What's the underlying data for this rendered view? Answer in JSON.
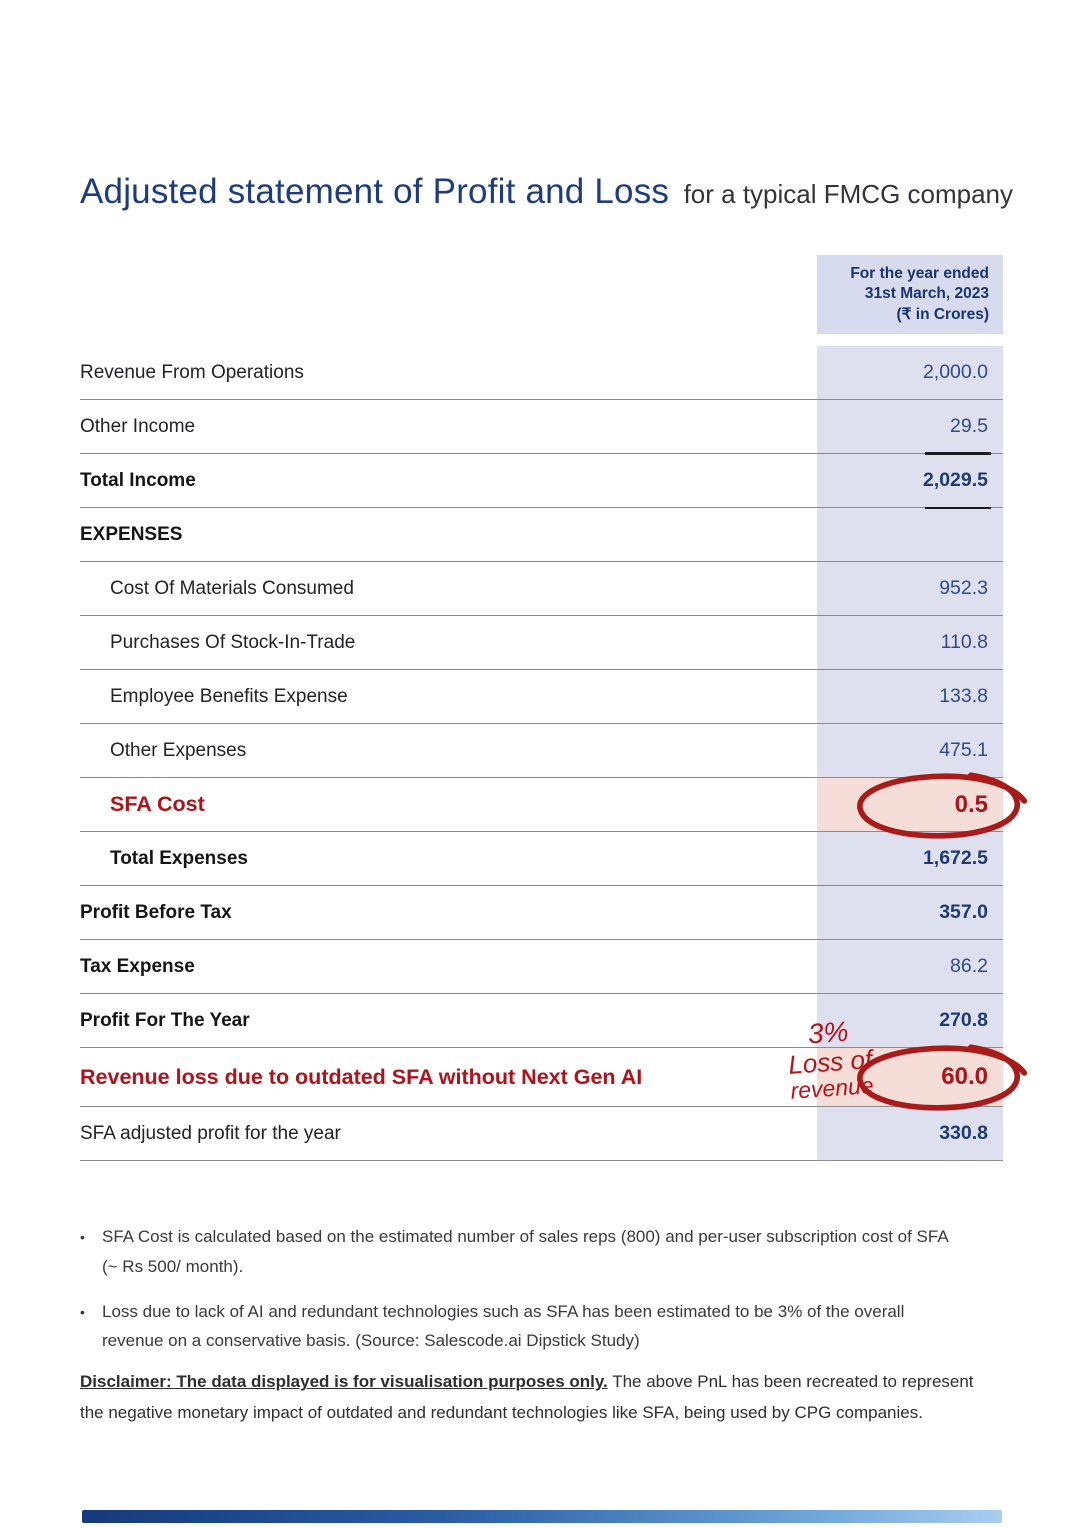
{
  "page": {
    "title": "Adjusted statement of Profit and Loss",
    "subtitle": "for a typical FMCG company"
  },
  "table": {
    "column_header_lines": [
      "For the year ended",
      "31st March, 2023",
      "(₹ in Crores)"
    ],
    "rows": [
      {
        "label": "Revenue From Operations",
        "value": "2,000.0"
      },
      {
        "label": "Other Income",
        "value": "29.5"
      },
      {
        "label": "Total Income",
        "value": "2,029.5",
        "label_bold": true,
        "value_bold": true,
        "ticks": true
      },
      {
        "label": "EXPENSES",
        "value": "",
        "label_bold": true
      },
      {
        "label": "Cost Of Materials Consumed",
        "value": "952.3",
        "indent": true
      },
      {
        "label": "Purchases Of Stock-In-Trade",
        "value": "110.8",
        "indent": true
      },
      {
        "label": "Employee Benefits Expense",
        "value": "133.8",
        "indent": true
      },
      {
        "label": "Other Expenses",
        "value": "475.1",
        "indent": true
      },
      {
        "label": "SFA Cost",
        "value": "0.5",
        "indent": true,
        "red": true,
        "pink": true,
        "circled": true
      },
      {
        "label": "Total Expenses",
        "value": "1,672.5",
        "indent": true,
        "label_bold": true,
        "value_bold": true
      },
      {
        "label": "Profit Before Tax",
        "value": "357.0",
        "label_bold": true,
        "value_bold": true
      },
      {
        "label": "Tax Expense",
        "value": "86.2",
        "label_bold": true
      },
      {
        "label": "Profit For The Year",
        "value": "270.8",
        "label_bold": true,
        "value_bold": true
      },
      {
        "label": "Revenue loss due to outdated SFA without Next Gen AI",
        "value": "60.0",
        "red": true,
        "pink": true,
        "circled": true,
        "tall": true
      },
      {
        "label": "SFA adjusted profit for the year",
        "value": "330.8",
        "value_bold": true
      }
    ]
  },
  "annotations": {
    "loss_note_lines": [
      "3%",
      "Loss of",
      "revenue"
    ],
    "circle_color": "#a81b18"
  },
  "footnotes_bullet": "•",
  "footnotes": [
    {
      "text": "SFA Cost is calculated based on the estimated number of sales reps (800) and per-user subscription cost of SFA (~ Rs 500/ month)."
    },
    {
      "text": "Loss due to lack of AI and redundant technologies such as SFA has been estimated to be 3% of the overall revenue on a conservative basis. (Source: Salescode.ai Dipstick Study)"
    }
  ],
  "disclaimer": {
    "lead": "Disclaimer: The data displayed is for visualisation purposes only.",
    "rest": " The above PnL has been recreated to represent the negative monetary impact of outdated and redundant technologies like SFA, being used by CPG companies."
  },
  "colors": {
    "title_blue": "#1d3c80",
    "header_text": "#17356d",
    "header_bg": "#d8dbee",
    "value_column_bg": "#dee0ef",
    "value_text": "#2d4b89",
    "highlight_red": "#b0121a",
    "highlight_pink_bg": "#f5ded8",
    "divider_gray": "#8b8b8b"
  }
}
